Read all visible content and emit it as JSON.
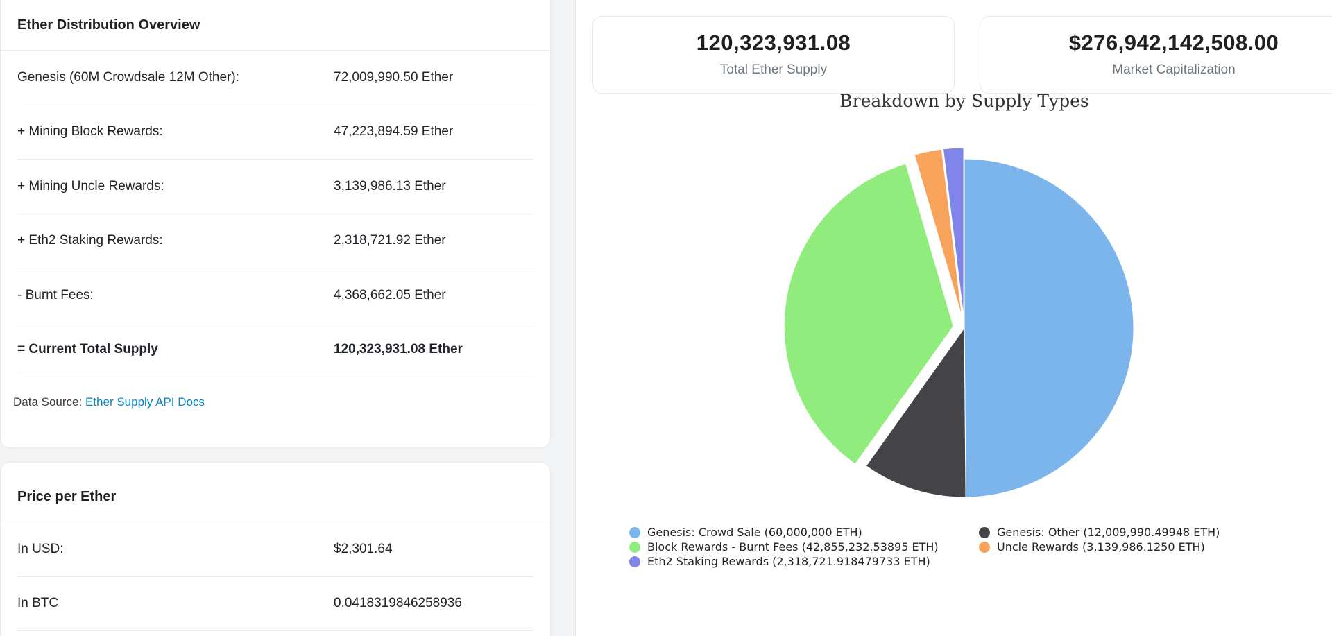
{
  "distribution": {
    "title": "Ether Distribution Overview",
    "rows": [
      {
        "label": "Genesis (60M Crowdsale 12M Other):",
        "value": "72,009,990.50 Ether"
      },
      {
        "label": "+ Mining Block Rewards:",
        "value": "47,223,894.59 Ether"
      },
      {
        "label": "+ Mining Uncle Rewards:",
        "value": "3,139,986.13 Ether"
      },
      {
        "label": "+ Eth2 Staking Rewards:",
        "value": "2,318,721.92 Ether"
      },
      {
        "label": "- Burnt Fees:",
        "value": "4,368,662.05 Ether"
      },
      {
        "label": "= Current Total Supply",
        "value": "120,323,931.08 Ether"
      }
    ],
    "source_prefix": "Data Source:",
    "source_link": "Ether Supply API Docs"
  },
  "price": {
    "title": "Price per Ether",
    "rows": [
      {
        "label": "In USD:",
        "value": "$2,301.64"
      },
      {
        "label": "In BTC",
        "value": "0.0418319846258936"
      }
    ]
  },
  "stats": {
    "total_supply": {
      "value": "120,323,931.08",
      "label": "Total Ether Supply"
    },
    "market_cap": {
      "value": "$276,942,142,508.00",
      "label": "Market Capitalization"
    }
  },
  "chart_data": {
    "type": "pie",
    "title": "Breakdown by Supply Types",
    "legend_position": "bottom",
    "series": [
      {
        "name": "Genesis: Crowd Sale (60,000,000 ETH)",
        "value": 60000000,
        "color": "#7cb5ec",
        "sliced": false
      },
      {
        "name": "Genesis: Other (12,009,990.49948 ETH)",
        "value": 12009990.49948,
        "color": "#434348",
        "sliced": false
      },
      {
        "name": "Block Rewards - Burnt Fees (42,855,232.53895 ETH)",
        "value": 42855232.53895,
        "color": "#90ed7d",
        "sliced": true
      },
      {
        "name": "Uncle Rewards (3,139,986.1250 ETH)",
        "value": 3139986.125,
        "color": "#f7a35c",
        "sliced": true
      },
      {
        "name": "Eth2 Staking Rewards (2,318,721.918479733 ETH)",
        "value": 2318721.918479733,
        "color": "#8085e9",
        "sliced": true
      }
    ]
  }
}
